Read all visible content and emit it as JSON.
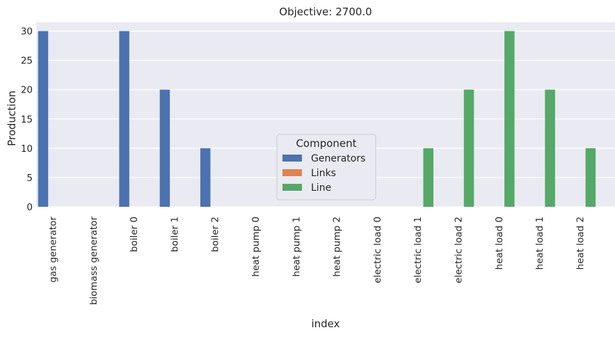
{
  "chart_data": {
    "type": "bar",
    "title": "Objective: 2700.0",
    "xlabel": "index",
    "ylabel": "Production",
    "ylim": [
      0,
      31.5
    ],
    "yticks": [
      0,
      5,
      10,
      15,
      20,
      25,
      30
    ],
    "grid": true,
    "legend_title": "Component",
    "legend_position": "center",
    "categories": [
      "gas generator",
      "biomass generator",
      "boiler 0",
      "boiler 1",
      "boiler 2",
      "heat pump 0",
      "heat pump 1",
      "heat pump 2",
      "electric load 0",
      "electric load 1",
      "electric load 2",
      "heat load 0",
      "heat load 1",
      "heat load 2"
    ],
    "series": [
      {
        "name": "Generators",
        "color": "#4c72b0",
        "values": [
          30,
          0,
          30,
          20,
          10,
          0,
          0,
          0,
          0,
          0,
          0,
          0,
          0,
          0
        ]
      },
      {
        "name": "Links",
        "color": "#dd8452",
        "values": [
          0,
          0,
          0,
          0,
          0,
          0,
          0,
          0,
          0,
          0,
          0,
          0,
          0,
          0
        ]
      },
      {
        "name": "Line",
        "color": "#55a868",
        "values": [
          0,
          0,
          0,
          0,
          0,
          0,
          0,
          0,
          0,
          10,
          20,
          30,
          20,
          10
        ]
      }
    ]
  }
}
